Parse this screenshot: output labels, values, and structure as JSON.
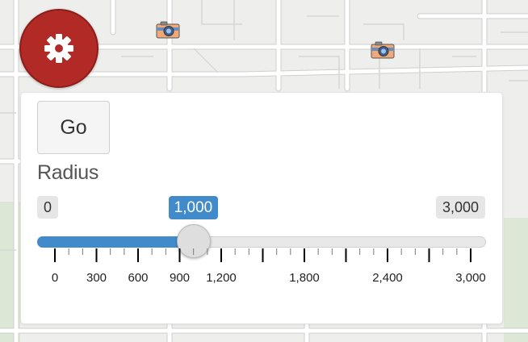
{
  "map": {
    "marker_icon": "camera-icon",
    "colors": {
      "land": "#eeeeec",
      "road": "#ffffff",
      "road_edge": "#d0d0d0",
      "park": "#dbe8d3"
    }
  },
  "settings_button": {
    "icon": "gear-icon",
    "color": "#b22a26"
  },
  "panel": {
    "go_label": "Go",
    "radius_label": "Radius",
    "slider": {
      "min": 0,
      "max": 3000,
      "value": 1000,
      "min_label": "0",
      "max_label": "3,000",
      "value_label": "1,000",
      "accent": "#428bca",
      "major_ticks": [
        {
          "value": 0,
          "label": "0"
        },
        {
          "value": 300,
          "label": "300"
        },
        {
          "value": 600,
          "label": "600"
        },
        {
          "value": 900,
          "label": "900"
        },
        {
          "value": 1200,
          "label": "1,200"
        },
        {
          "value": 1800,
          "label": "1,800"
        },
        {
          "value": 2400,
          "label": "2,400"
        },
        {
          "value": 3000,
          "label": "3,000"
        }
      ]
    }
  }
}
